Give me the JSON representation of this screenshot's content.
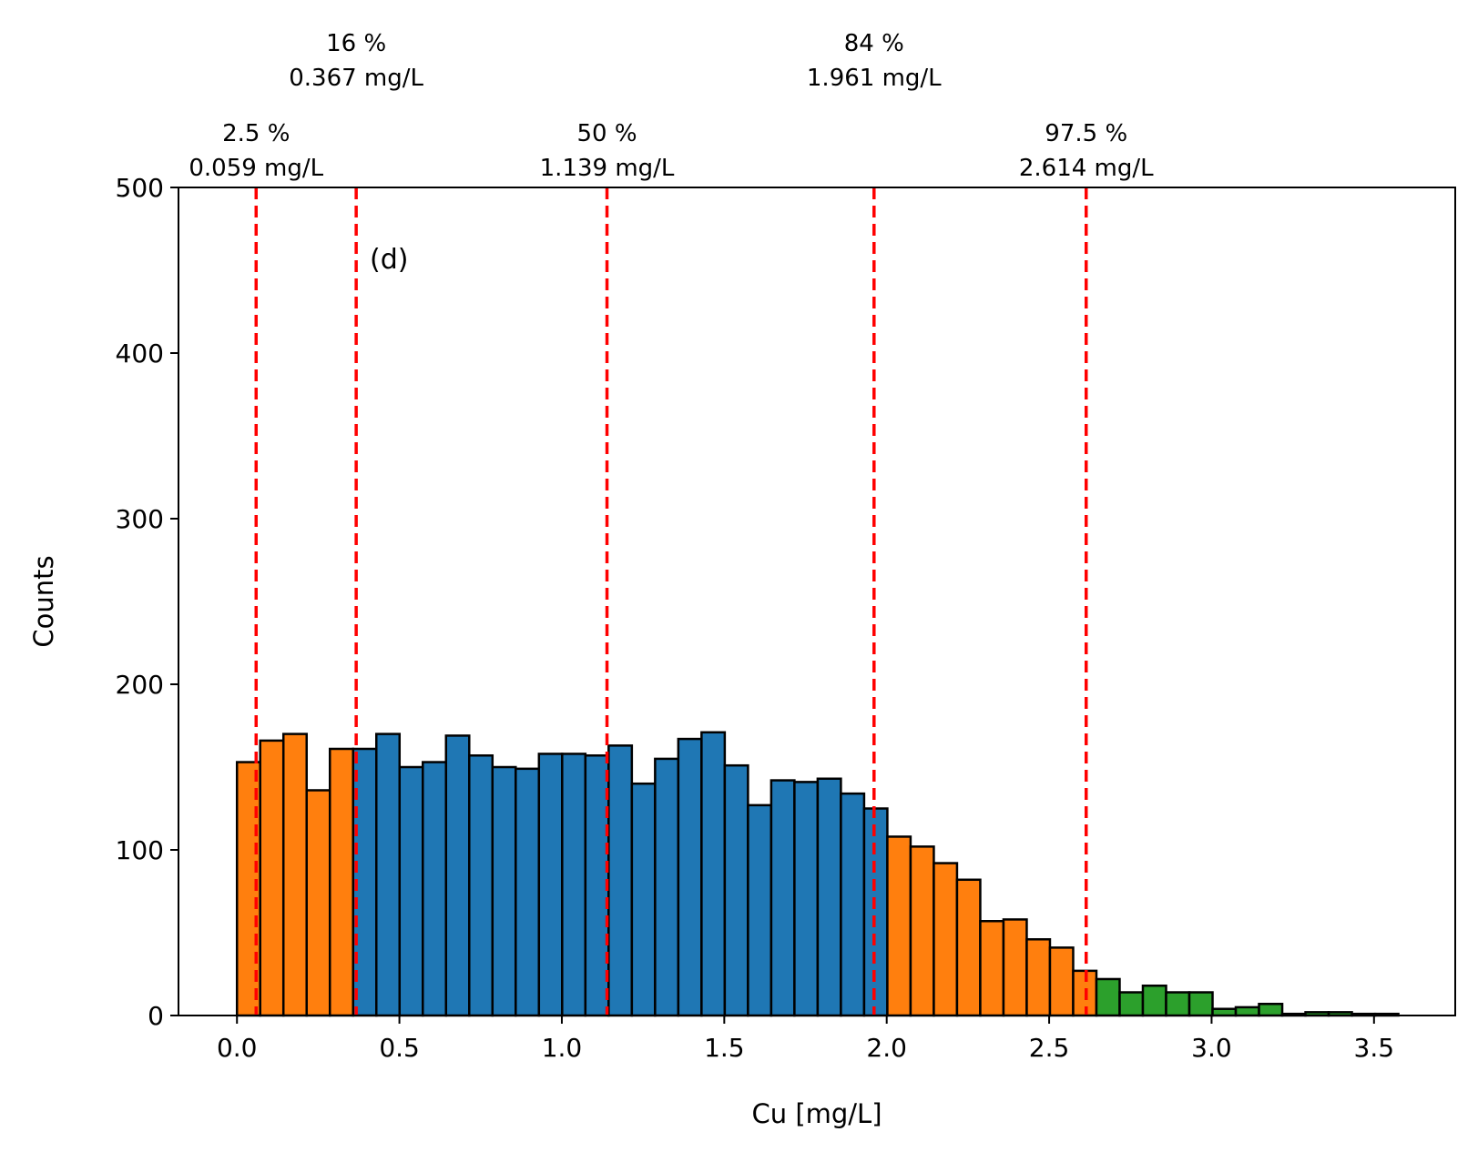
{
  "chart_data": {
    "type": "bar",
    "panel_label": "(d)",
    "xlabel": "Cu [mg/L]",
    "ylabel": "Counts",
    "xlim": [
      -0.18,
      3.75
    ],
    "ylim": [
      0,
      500
    ],
    "x_ticks": [
      0.0,
      0.5,
      1.0,
      1.5,
      2.0,
      2.5,
      3.0,
      3.5
    ],
    "x_tick_labels": [
      "0.0",
      "0.5",
      "1.0",
      "1.5",
      "2.0",
      "2.5",
      "3.0",
      "3.5"
    ],
    "y_ticks": [
      0,
      100,
      200,
      300,
      400,
      500
    ],
    "y_tick_labels": [
      "0",
      "100",
      "200",
      "300",
      "400",
      "500"
    ],
    "grid": false,
    "bin_start": 0.0,
    "bin_width": 0.0715,
    "bins": [
      {
        "count": 153,
        "group": "orange"
      },
      {
        "count": 166,
        "group": "orange"
      },
      {
        "count": 170,
        "group": "orange"
      },
      {
        "count": 136,
        "group": "orange"
      },
      {
        "count": 161,
        "group": "orange"
      },
      {
        "count": 161,
        "group": "blue"
      },
      {
        "count": 170,
        "group": "blue"
      },
      {
        "count": 150,
        "group": "blue"
      },
      {
        "count": 153,
        "group": "blue"
      },
      {
        "count": 169,
        "group": "blue"
      },
      {
        "count": 157,
        "group": "blue"
      },
      {
        "count": 150,
        "group": "blue"
      },
      {
        "count": 149,
        "group": "blue"
      },
      {
        "count": 158,
        "group": "blue"
      },
      {
        "count": 158,
        "group": "blue"
      },
      {
        "count": 157,
        "group": "blue"
      },
      {
        "count": 163,
        "group": "blue"
      },
      {
        "count": 140,
        "group": "blue"
      },
      {
        "count": 155,
        "group": "blue"
      },
      {
        "count": 167,
        "group": "blue"
      },
      {
        "count": 171,
        "group": "blue"
      },
      {
        "count": 151,
        "group": "blue"
      },
      {
        "count": 127,
        "group": "blue"
      },
      {
        "count": 142,
        "group": "blue"
      },
      {
        "count": 141,
        "group": "blue"
      },
      {
        "count": 143,
        "group": "blue"
      },
      {
        "count": 134,
        "group": "blue"
      },
      {
        "count": 125,
        "group": "blue"
      },
      {
        "count": 108,
        "group": "orange"
      },
      {
        "count": 102,
        "group": "orange"
      },
      {
        "count": 92,
        "group": "orange"
      },
      {
        "count": 82,
        "group": "orange"
      },
      {
        "count": 57,
        "group": "orange"
      },
      {
        "count": 58,
        "group": "orange"
      },
      {
        "count": 46,
        "group": "orange"
      },
      {
        "count": 41,
        "group": "orange"
      },
      {
        "count": 27,
        "group": "orange"
      },
      {
        "count": 22,
        "group": "green"
      },
      {
        "count": 14,
        "group": "green"
      },
      {
        "count": 18,
        "group": "green"
      },
      {
        "count": 14,
        "group": "green"
      },
      {
        "count": 14,
        "group": "green"
      },
      {
        "count": 4,
        "group": "green"
      },
      {
        "count": 5,
        "group": "green"
      },
      {
        "count": 7,
        "group": "green"
      },
      {
        "count": 1,
        "group": "green"
      },
      {
        "count": 2,
        "group": "green"
      },
      {
        "count": 2,
        "group": "green"
      },
      {
        "count": 1,
        "group": "green"
      },
      {
        "count": 1,
        "group": "green"
      }
    ],
    "colors": {
      "blue": "#1f77b4",
      "orange": "#ff7f0e",
      "green": "#2ca02c",
      "percentile_line": "#ff0000",
      "bar_edge": "#000000"
    },
    "percentiles": [
      {
        "value": 0.059,
        "pct_label": "2.5 %",
        "value_label": "0.059 mg/L",
        "row": "lower"
      },
      {
        "value": 0.367,
        "pct_label": "16 %",
        "value_label": "0.367 mg/L",
        "row": "upper"
      },
      {
        "value": 1.139,
        "pct_label": "50 %",
        "value_label": "1.139 mg/L",
        "row": "lower"
      },
      {
        "value": 1.961,
        "pct_label": "84 %",
        "value_label": "1.961 mg/L",
        "row": "upper"
      },
      {
        "value": 2.614,
        "pct_label": "97.5 %",
        "value_label": "2.614 mg/L",
        "row": "lower"
      }
    ]
  }
}
